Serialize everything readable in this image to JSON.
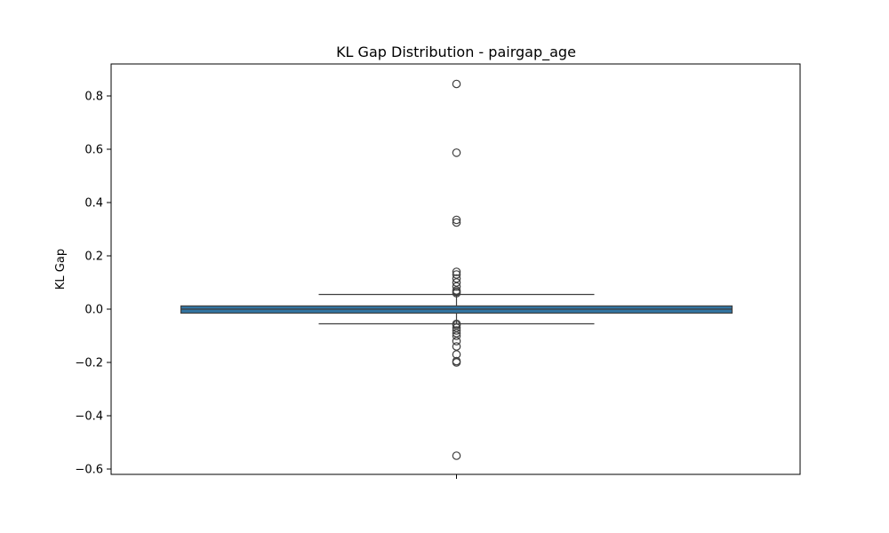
{
  "chart_data": {
    "type": "box",
    "title": "KL Gap Distribution - pairgap_age",
    "xlabel": "",
    "ylabel": "KL Gap",
    "ylim": [
      -0.62,
      0.92
    ],
    "yticks": [
      -0.6,
      -0.4,
      -0.2,
      0.0,
      0.2,
      0.4,
      0.6,
      0.8
    ],
    "ytick_labels": [
      "−0.6",
      "−0.4",
      "−0.2",
      "0.0",
      "0.2",
      "0.4",
      "0.6",
      "0.8"
    ],
    "grid": false,
    "box": {
      "q1": -0.015,
      "median": 0.0,
      "q3": 0.012,
      "whisker_low": -0.055,
      "whisker_high": 0.055,
      "outliers": [
        0.845,
        0.587,
        0.335,
        0.325,
        0.14,
        0.13,
        0.115,
        0.1,
        0.085,
        0.07,
        0.065,
        0.06,
        -0.055,
        -0.06,
        -0.07,
        -0.08,
        -0.09,
        -0.1,
        -0.12,
        -0.14,
        -0.17,
        -0.195,
        -0.2,
        -0.55
      ],
      "color": "#3274a1"
    }
  }
}
